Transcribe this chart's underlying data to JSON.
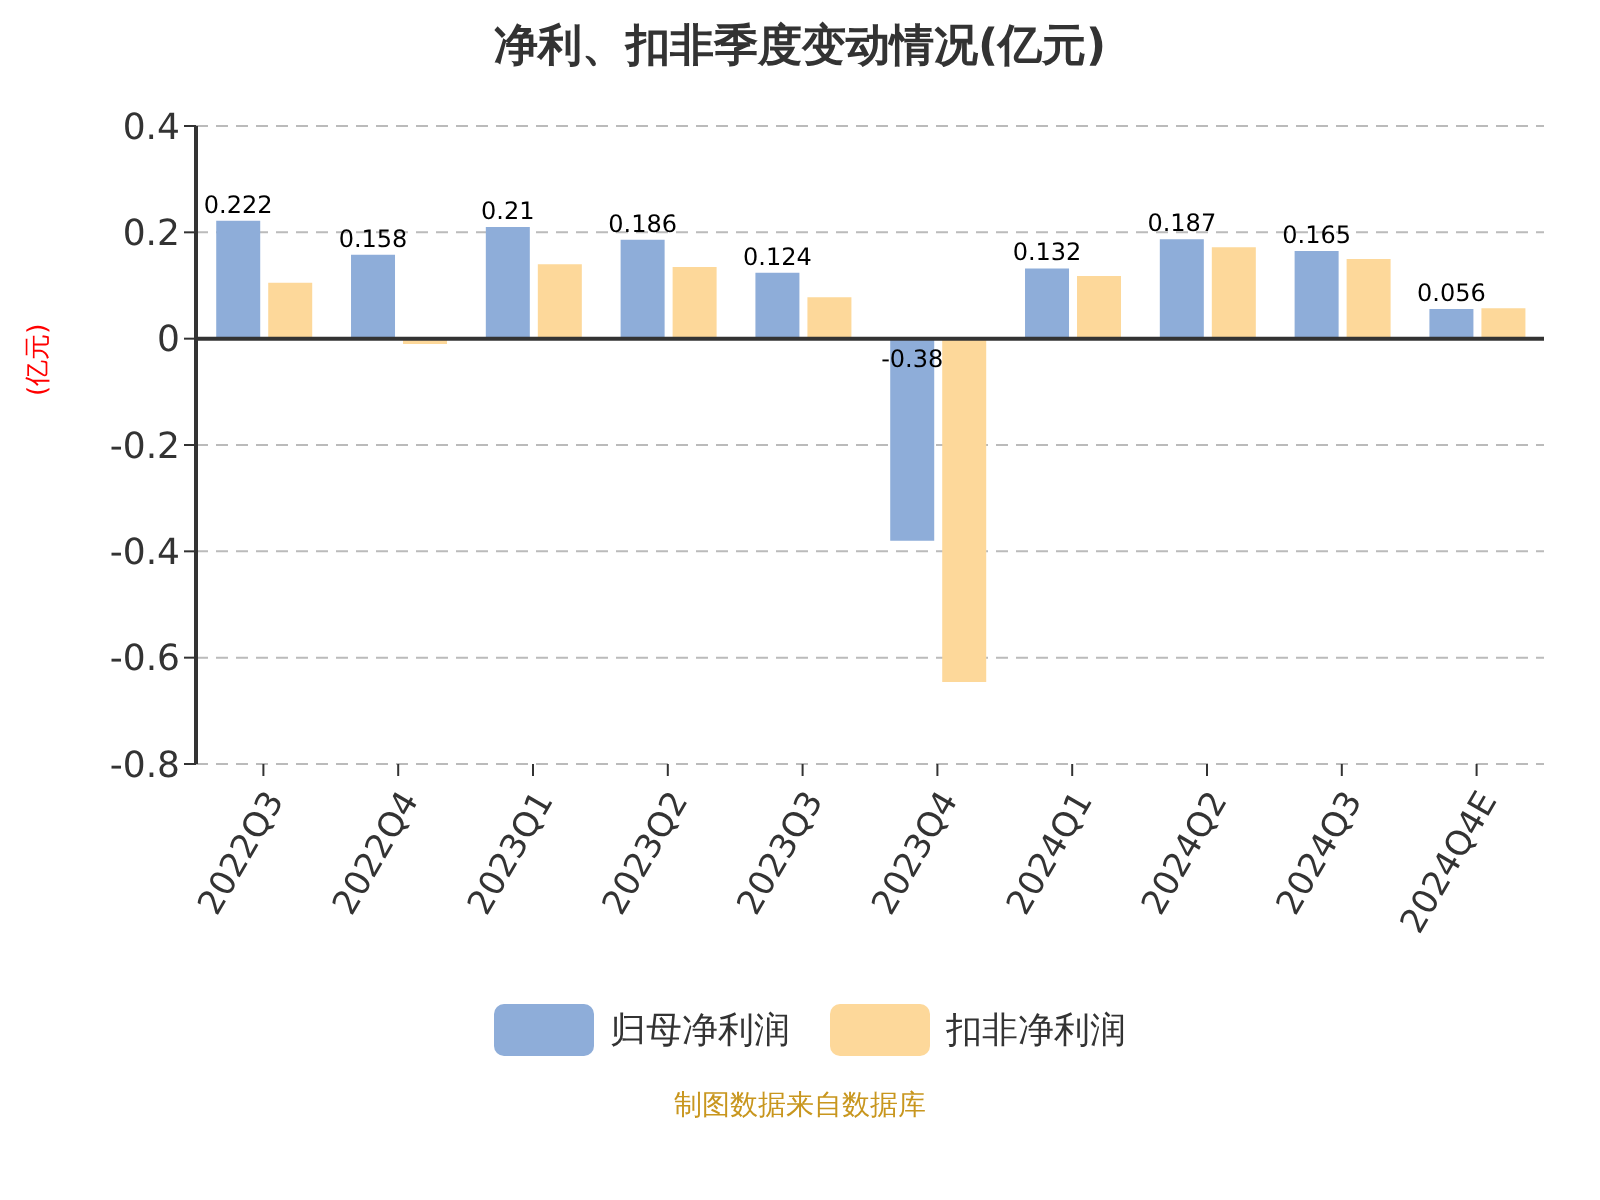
{
  "chart_data": {
    "type": "bar",
    "title": "净利、扣非季度变动情况(亿元)",
    "ylabel": "(亿元)",
    "categories": [
      "2022Q3",
      "2022Q4",
      "2023Q1",
      "2023Q2",
      "2023Q3",
      "2023Q4",
      "2024Q1",
      "2024Q2",
      "2024Q3",
      "2024Q4E"
    ],
    "series": [
      {
        "name": "归母净利润",
        "color": "#8eadd9",
        "values": [
          0.222,
          0.158,
          0.21,
          0.186,
          0.124,
          -0.38,
          0.132,
          0.187,
          0.165,
          0.056
        ],
        "value_labels": [
          "0.222",
          "0.158",
          "0.21",
          "0.186",
          "0.124",
          "-0.38",
          "0.132",
          "0.187",
          "0.165",
          "0.056"
        ]
      },
      {
        "name": "扣非净利润",
        "color": "#fdd89a",
        "values": [
          0.105,
          -0.01,
          0.14,
          0.135,
          0.078,
          -0.646,
          0.118,
          0.172,
          0.15,
          0.057
        ]
      }
    ],
    "ylim": [
      -0.8,
      0.4
    ],
    "yticks": [
      -0.8,
      -0.6,
      -0.4,
      -0.2,
      0,
      0.2,
      0.4
    ],
    "grid": "y",
    "legend": "bottom",
    "annotations": [
      "制图数据来自数据库"
    ]
  }
}
